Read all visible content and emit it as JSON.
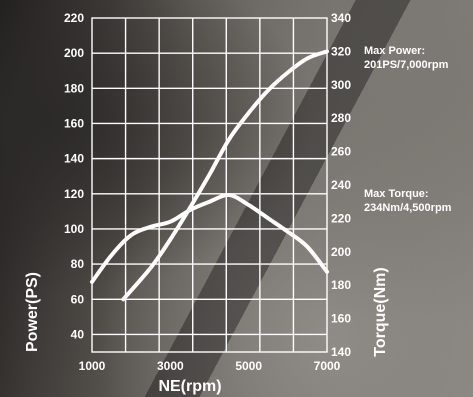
{
  "chart_data": {
    "type": "line",
    "xlabel": "NE(rpm)",
    "ylabel_left": "Power(PS)",
    "ylabel_right": "Torque(Nm)",
    "x_ticks": [
      1000,
      3000,
      5000,
      7000
    ],
    "xlim": [
      1000,
      7000
    ],
    "ylim_left": [
      30,
      220
    ],
    "ylim_right": [
      140,
      340
    ],
    "y_left_ticks": [
      40,
      60,
      80,
      100,
      120,
      140,
      160,
      180,
      200,
      220
    ],
    "y_right_ticks": [
      140,
      160,
      180,
      200,
      220,
      240,
      260,
      280,
      300,
      320,
      340
    ],
    "grid": true,
    "series": [
      {
        "key": "power",
        "axis": "left",
        "x": [
          1800,
          2500,
          3000,
          3500,
          4000,
          4500,
          5000,
          5500,
          6000,
          6500,
          7000
        ],
        "values": [
          60,
          78,
          94,
          112,
          131,
          151,
          166,
          179,
          189,
          197,
          201
        ]
      },
      {
        "key": "torque",
        "axis": "right",
        "x": [
          1000,
          1500,
          2000,
          2500,
          3000,
          3500,
          4000,
          4500,
          5000,
          5500,
          6000,
          6500,
          7000
        ],
        "values": [
          182,
          198,
          210,
          215,
          218,
          225,
          230,
          234,
          228,
          220,
          212,
          203,
          188
        ]
      }
    ],
    "annotations": [
      {
        "line1": "Max Power:",
        "line2": "201PS/7,000rpm"
      },
      {
        "line1": "Max Torque:",
        "line2": "234Nm/4,500rpm"
      }
    ]
  }
}
